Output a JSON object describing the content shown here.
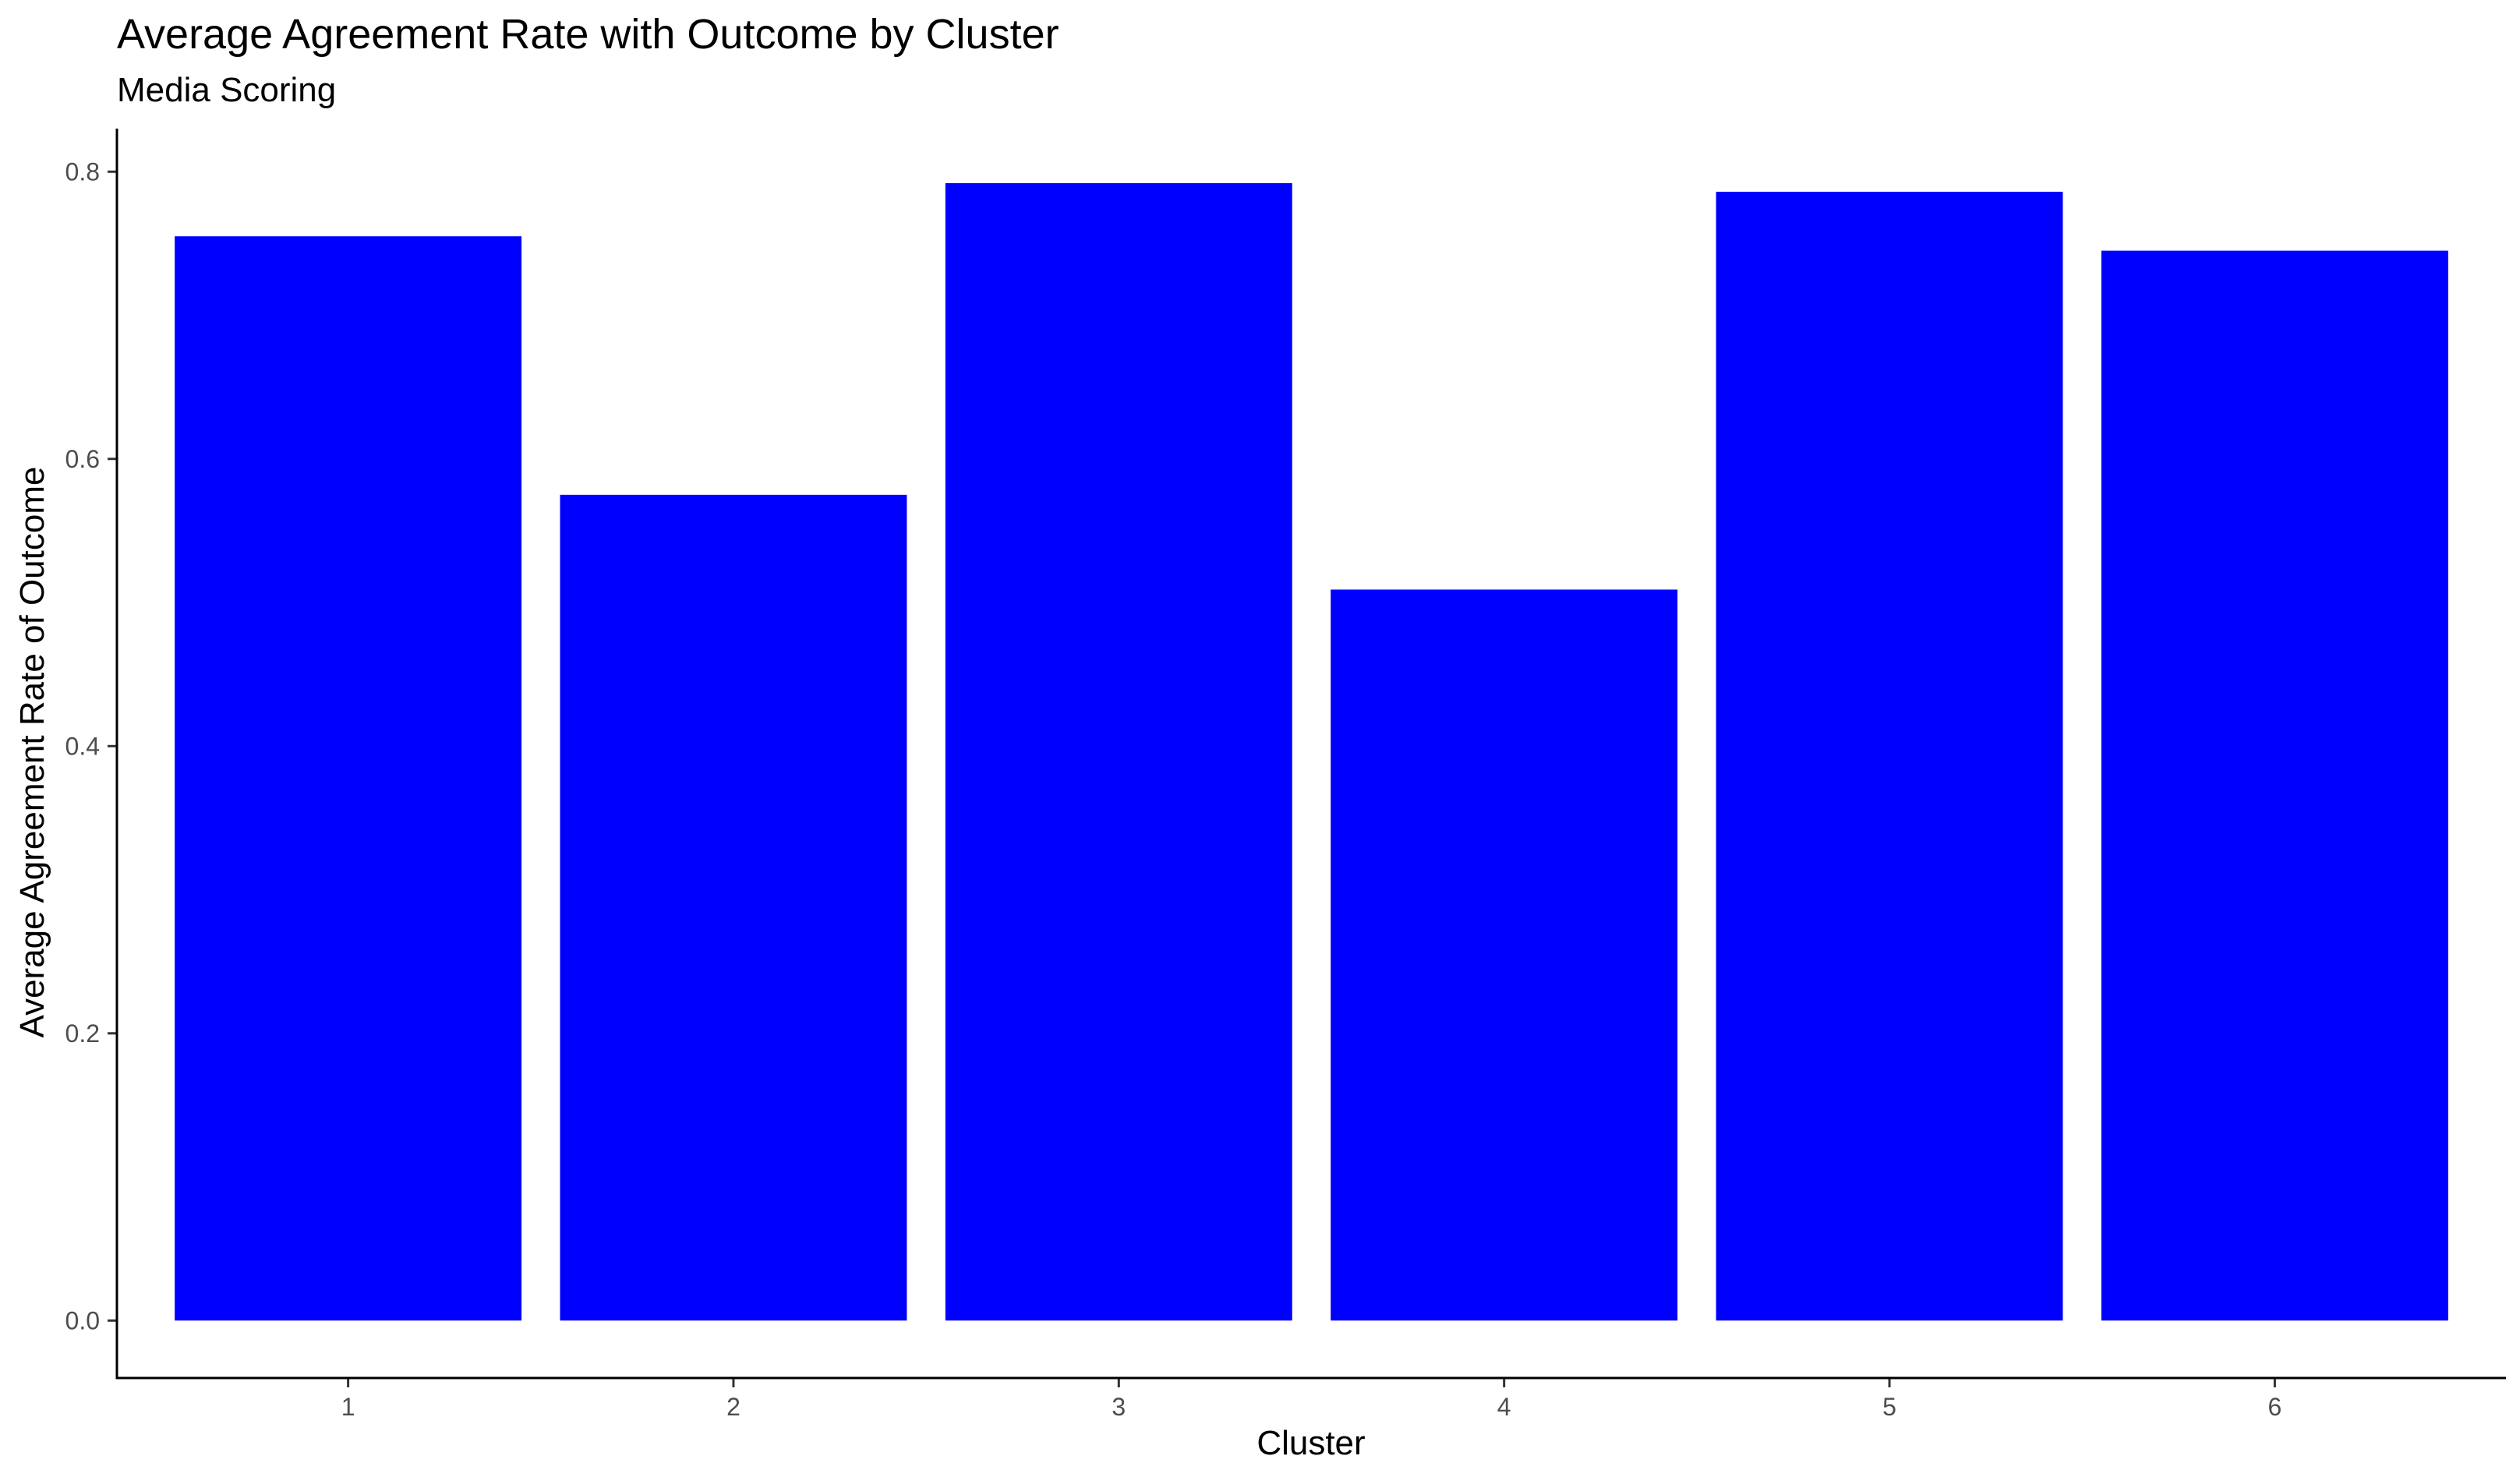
{
  "chart_data": {
    "type": "bar",
    "title": "Average Agreement Rate with Outcome by Cluster",
    "subtitle": "Media Scoring",
    "xlabel": "Cluster",
    "ylabel": "Average Agreement Rate of Outcome",
    "categories": [
      "1",
      "2",
      "3",
      "4",
      "5",
      "6"
    ],
    "values": [
      0.755,
      0.575,
      0.792,
      0.509,
      0.786,
      0.745
    ],
    "ylim": [
      -0.04,
      0.83
    ],
    "yticks": [
      0.0,
      0.2,
      0.4,
      0.6,
      0.8
    ],
    "ytick_labels": [
      "0.0",
      "0.2",
      "0.4",
      "0.6",
      "0.8"
    ],
    "bar_color": "#0000ff",
    "grid": false,
    "legend": "none"
  }
}
